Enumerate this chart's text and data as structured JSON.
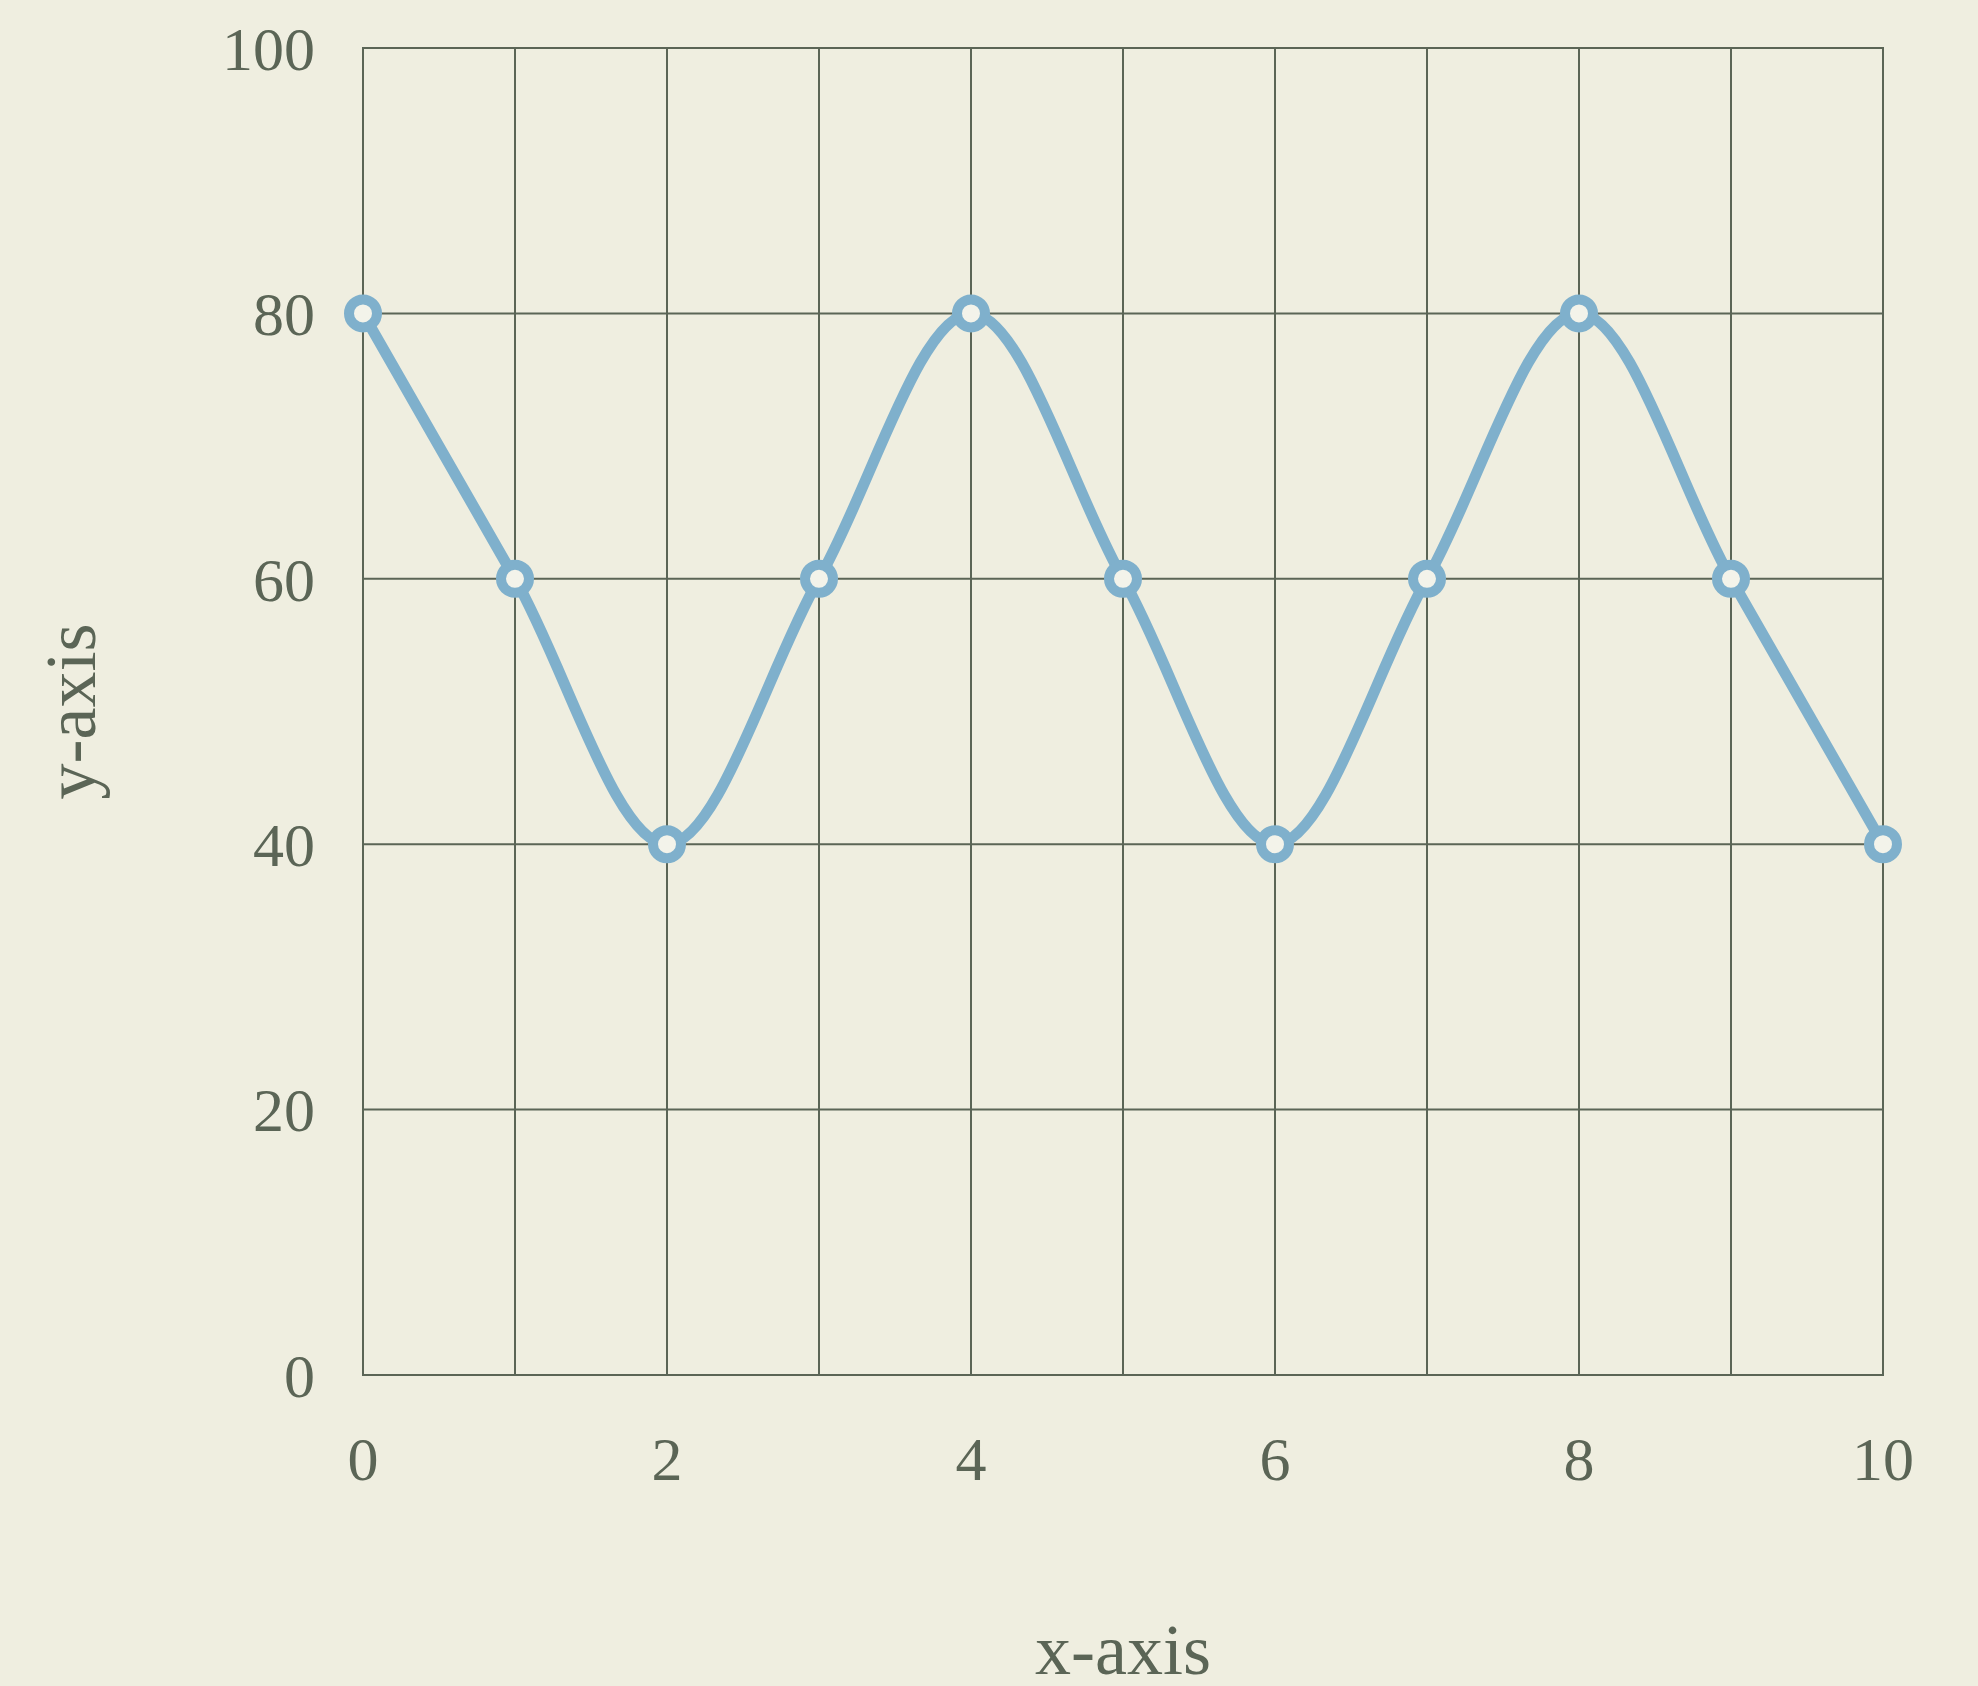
{
  "chart_data": {
    "type": "line",
    "xlabel": "x-axis",
    "ylabel": "y-axis",
    "x": [
      0,
      1,
      2,
      3,
      4,
      5,
      6,
      7,
      8,
      9,
      10
    ],
    "series": [
      {
        "color": "#7fb0cc",
        "values": [
          80,
          60,
          40,
          60,
          80,
          60,
          40,
          60,
          80,
          60,
          40
        ]
      }
    ],
    "xlim": [
      0,
      10
    ],
    "ylim": [
      0,
      100
    ],
    "xticks": [
      0,
      {
        "value": 1,
        "label": null
      },
      2,
      {
        "value": 3,
        "label": null
      },
      4,
      {
        "value": 5,
        "label": null
      },
      6,
      {
        "value": 7,
        "label": null
      },
      8,
      {
        "value": 9,
        "label": null
      },
      10
    ],
    "yticks": [
      0,
      20,
      40,
      60,
      80,
      100
    ],
    "grid": true,
    "marker": "circle",
    "line_style": "solid"
  }
}
